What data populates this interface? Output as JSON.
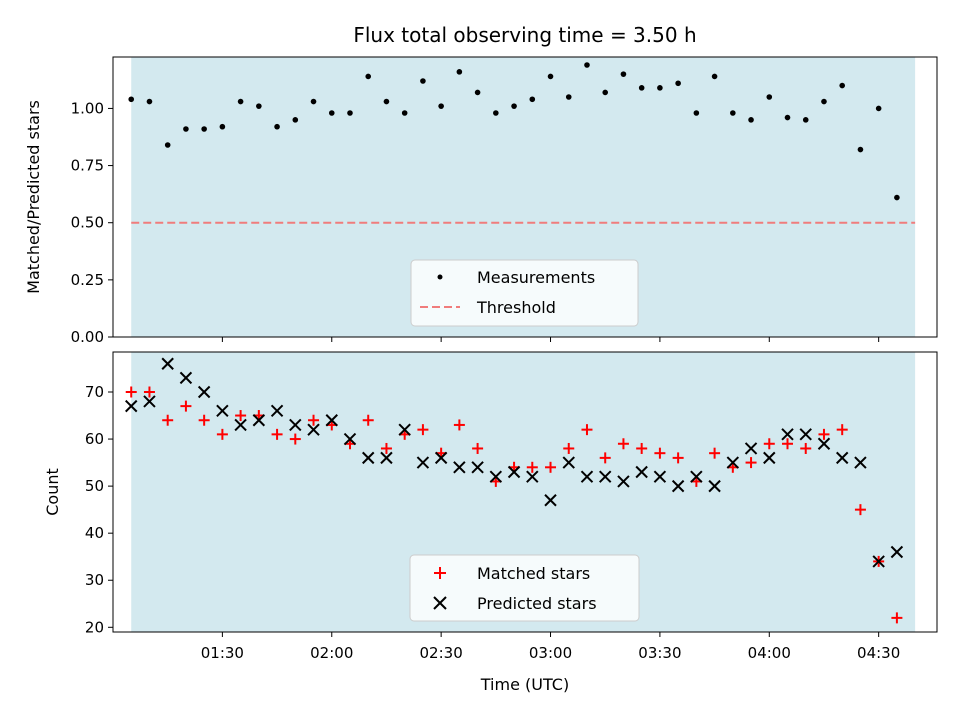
{
  "chart_data": [
    {
      "type": "scatter",
      "title": "Flux total observing time = 3.50 h",
      "ylabel": "Matched/Predicted stars",
      "xlabel": "",
      "ylim": [
        0.0,
        1.225
      ],
      "yticks": [
        0.0,
        0.25,
        0.5,
        0.75,
        1.0
      ],
      "ytick_labels": [
        "0.00",
        "0.25",
        "0.50",
        "0.75",
        "1.00"
      ],
      "shaded_span": [
        "01:05",
        "04:40"
      ],
      "shade_color": "#d3e9ef",
      "threshold": 0.5,
      "threshold_color": "#f07c7c",
      "legend_position": "lower center",
      "series": [
        {
          "name": "Measurements",
          "marker": "dot",
          "color": "#000000",
          "points": [
            [
              "01:05",
              1.04
            ],
            [
              "01:10",
              1.03
            ],
            [
              "01:15",
              0.84
            ],
            [
              "01:20",
              0.91
            ],
            [
              "01:25",
              0.91
            ],
            [
              "01:30",
              0.92
            ],
            [
              "01:35",
              1.03
            ],
            [
              "01:40",
              1.01
            ],
            [
              "01:45",
              0.92
            ],
            [
              "01:50",
              0.95
            ],
            [
              "01:55",
              1.03
            ],
            [
              "02:00",
              0.98
            ],
            [
              "02:05",
              0.98
            ],
            [
              "02:10",
              1.14
            ],
            [
              "02:15",
              1.03
            ],
            [
              "02:20",
              0.98
            ],
            [
              "02:25",
              1.12
            ],
            [
              "02:30",
              1.01
            ],
            [
              "02:35",
              1.16
            ],
            [
              "02:40",
              1.07
            ],
            [
              "02:45",
              0.98
            ],
            [
              "02:50",
              1.01
            ],
            [
              "02:55",
              1.04
            ],
            [
              "03:00",
              1.14
            ],
            [
              "03:05",
              1.05
            ],
            [
              "03:10",
              1.19
            ],
            [
              "03:15",
              1.07
            ],
            [
              "03:20",
              1.15
            ],
            [
              "03:25",
              1.09
            ],
            [
              "03:30",
              1.09
            ],
            [
              "03:35",
              1.11
            ],
            [
              "03:40",
              0.98
            ],
            [
              "03:45",
              1.14
            ],
            [
              "03:50",
              0.98
            ],
            [
              "03:55",
              0.95
            ],
            [
              "04:00",
              1.05
            ],
            [
              "04:05",
              0.96
            ],
            [
              "04:10",
              0.95
            ],
            [
              "04:15",
              1.03
            ],
            [
              "04:20",
              1.1
            ],
            [
              "04:25",
              0.82
            ],
            [
              "04:30",
              1.0
            ],
            [
              "04:35",
              0.61
            ]
          ]
        },
        {
          "name": "Threshold",
          "marker": "dashed-line",
          "color": "#f07c7c"
        }
      ]
    },
    {
      "type": "scatter",
      "title": "",
      "ylabel": "Count",
      "xlabel": "Time (UTC)",
      "ylim": [
        19,
        78.5
      ],
      "yticks": [
        20,
        30,
        40,
        50,
        60,
        70
      ],
      "ytick_labels": [
        "20",
        "30",
        "40",
        "50",
        "60",
        "70"
      ],
      "xticks": [
        "01:30",
        "02:00",
        "02:30",
        "03:00",
        "03:30",
        "04:00",
        "04:30"
      ],
      "shaded_span": [
        "01:05",
        "04:40"
      ],
      "shade_color": "#d3e9ef",
      "legend_position": "lower center",
      "series": [
        {
          "name": "Matched stars",
          "marker": "plus",
          "color": "#ff0000",
          "points": [
            [
              "01:05",
              70
            ],
            [
              "01:10",
              70
            ],
            [
              "01:15",
              64
            ],
            [
              "01:20",
              67
            ],
            [
              "01:25",
              64
            ],
            [
              "01:30",
              61
            ],
            [
              "01:35",
              65
            ],
            [
              "01:40",
              65
            ],
            [
              "01:45",
              61
            ],
            [
              "01:50",
              60
            ],
            [
              "01:55",
              64
            ],
            [
              "02:00",
              63
            ],
            [
              "02:05",
              59
            ],
            [
              "02:10",
              64
            ],
            [
              "02:15",
              58
            ],
            [
              "02:20",
              61
            ],
            [
              "02:25",
              62
            ],
            [
              "02:30",
              57
            ],
            [
              "02:35",
              63
            ],
            [
              "02:40",
              58
            ],
            [
              "02:45",
              51
            ],
            [
              "02:50",
              54
            ],
            [
              "02:55",
              54
            ],
            [
              "03:00",
              54
            ],
            [
              "03:05",
              58
            ],
            [
              "03:10",
              62
            ],
            [
              "03:15",
              56
            ],
            [
              "03:20",
              59
            ],
            [
              "03:25",
              58
            ],
            [
              "03:30",
              57
            ],
            [
              "03:35",
              56
            ],
            [
              "03:40",
              51
            ],
            [
              "03:45",
              57
            ],
            [
              "03:50",
              54
            ],
            [
              "03:55",
              55
            ],
            [
              "04:00",
              59
            ],
            [
              "04:05",
              59
            ],
            [
              "04:10",
              58
            ],
            [
              "04:15",
              61
            ],
            [
              "04:20",
              62
            ],
            [
              "04:25",
              45
            ],
            [
              "04:30",
              34
            ],
            [
              "04:35",
              22
            ]
          ]
        },
        {
          "name": "Predicted stars",
          "marker": "x",
          "color": "#000000",
          "points": [
            [
              "01:05",
              67
            ],
            [
              "01:10",
              68
            ],
            [
              "01:15",
              76
            ],
            [
              "01:20",
              73
            ],
            [
              "01:25",
              70
            ],
            [
              "01:30",
              66
            ],
            [
              "01:35",
              63
            ],
            [
              "01:40",
              64
            ],
            [
              "01:45",
              66
            ],
            [
              "01:50",
              63
            ],
            [
              "01:55",
              62
            ],
            [
              "02:00",
              64
            ],
            [
              "02:05",
              60
            ],
            [
              "02:10",
              56
            ],
            [
              "02:15",
              56
            ],
            [
              "02:20",
              62
            ],
            [
              "02:25",
              55
            ],
            [
              "02:30",
              56
            ],
            [
              "02:35",
              54
            ],
            [
              "02:40",
              54
            ],
            [
              "02:45",
              52
            ],
            [
              "02:50",
              53
            ],
            [
              "02:55",
              52
            ],
            [
              "03:00",
              47
            ],
            [
              "03:05",
              55
            ],
            [
              "03:10",
              52
            ],
            [
              "03:15",
              52
            ],
            [
              "03:20",
              51
            ],
            [
              "03:25",
              53
            ],
            [
              "03:30",
              52
            ],
            [
              "03:35",
              50
            ],
            [
              "03:40",
              52
            ],
            [
              "03:45",
              50
            ],
            [
              "03:50",
              55
            ],
            [
              "03:55",
              58
            ],
            [
              "04:00",
              56
            ],
            [
              "04:05",
              61
            ],
            [
              "04:10",
              61
            ],
            [
              "04:15",
              59
            ],
            [
              "04:20",
              56
            ],
            [
              "04:25",
              55
            ],
            [
              "04:30",
              34
            ],
            [
              "04:35",
              36
            ]
          ]
        }
      ]
    }
  ],
  "x_axis_range": [
    "01:00",
    "04:46"
  ]
}
